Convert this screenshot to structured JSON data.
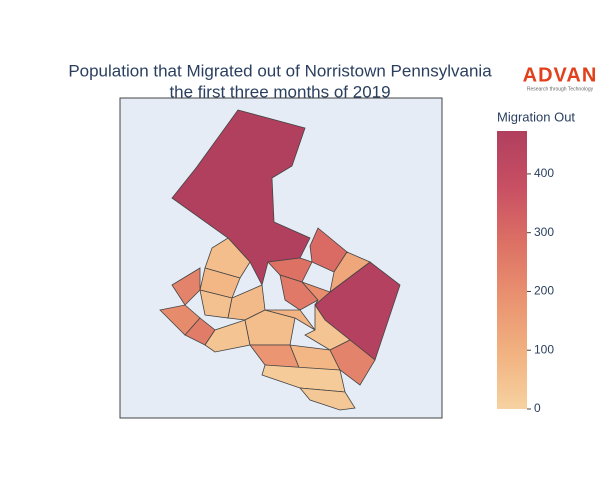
{
  "chart_data": {
    "type": "choropleth",
    "title": [
      "Population that Migrated out of Norristown Pennsylvania",
      "the first three months of 2019"
    ],
    "colorbar_title": "Migration Out",
    "zlim": [
      0,
      473
    ],
    "zticks": [
      0,
      100,
      200,
      300,
      400
    ],
    "colorscale": [
      "#f6d2a0",
      "#f1b280",
      "#ea9270",
      "#dc7064",
      "#c84f63",
      "#b03f5e"
    ],
    "values": [
      470,
      460,
      300,
      130,
      280,
      260,
      200,
      60,
      80,
      230,
      210,
      50,
      70,
      250,
      40,
      60,
      90,
      40,
      180,
      80,
      20,
      30,
      230
    ]
  },
  "logo": {
    "name": "ADVAN",
    "tagline": "Research through Technology"
  }
}
